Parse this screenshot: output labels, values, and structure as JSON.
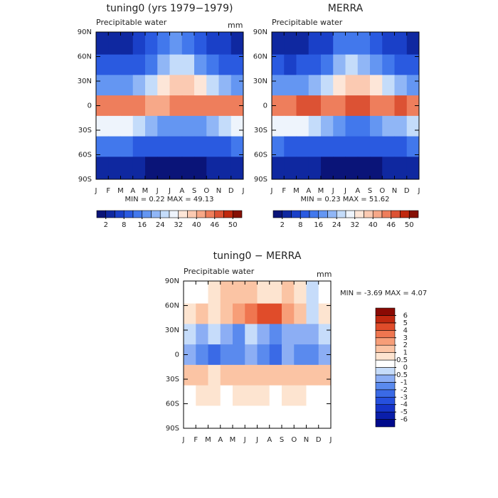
{
  "chart_data": [
    {
      "type": "heatmap",
      "title": "tuning0 (yrs 1979−1979)",
      "subtitle": "Precipitable water",
      "units": "mm",
      "xticklabels": [
        "J",
        "F",
        "M",
        "A",
        "M",
        "J",
        "J",
        "A",
        "S",
        "O",
        "N",
        "D",
        "J"
      ],
      "rows": [
        75,
        50,
        25,
        0,
        -25,
        -50,
        -75
      ],
      "ylim": [
        -90,
        90
      ],
      "yticks": [
        {
          "value": 90,
          "label": "90N"
        },
        {
          "value": 60,
          "label": "60N"
        },
        {
          "value": 30,
          "label": "30N"
        },
        0,
        {
          "value": -30,
          "label": "30S"
        },
        {
          "value": -60,
          "label": "60S"
        },
        {
          "value": -90,
          "label": "90S"
        }
      ],
      "values": [
        [
          4,
          4,
          4,
          5,
          8,
          13,
          16,
          14,
          10,
          7,
          5,
          4
        ],
        [
          8,
          8,
          9,
          11,
          15,
          22,
          26,
          25,
          19,
          14,
          10,
          9
        ],
        [
          18,
          17,
          17,
          20,
          25,
          32,
          38,
          38,
          33,
          26,
          21,
          19
        ],
        [
          43,
          43,
          44,
          43,
          42,
          41,
          43,
          44,
          43,
          44,
          45,
          44
        ],
        [
          30,
          31,
          30,
          27,
          22,
          18,
          16,
          16,
          18,
          21,
          24,
          28
        ],
        [
          12,
          12,
          12,
          11,
          10,
          9,
          9,
          9,
          9,
          10,
          11,
          12
        ],
        [
          3,
          3,
          3,
          2,
          1,
          1,
          1,
          1,
          1,
          2,
          2,
          3
        ]
      ],
      "min_label": "MIN =",
      "min": 0.22,
      "max_label": "MAX =",
      "max": 49.13,
      "colorbar": {
        "orientation": "horizontal",
        "ticks": [
          2,
          8,
          16,
          24,
          32,
          40,
          46,
          50
        ],
        "colors": [
          "#0a1478",
          "#0f28a0",
          "#1a40c8",
          "#2a5ae0",
          "#4278ec",
          "#6496f2",
          "#90b6f6",
          "#c4dcfa",
          "#eef4fc",
          "#fde6d8",
          "#fbcab2",
          "#f7a888",
          "#ee7e5c",
          "#dc5234",
          "#c0280e",
          "#861004"
        ]
      }
    },
    {
      "type": "heatmap",
      "title": "MERRA",
      "subtitle": "Precipitable water",
      "xticklabels": [
        "J",
        "F",
        "M",
        "A",
        "M",
        "J",
        "J",
        "A",
        "S",
        "O",
        "N",
        "D",
        "J"
      ],
      "rows": [
        75,
        50,
        25,
        0,
        -25,
        -50,
        -75
      ],
      "ylim": [
        -90,
        90
      ],
      "yticks": [
        {
          "value": 90,
          "label": "90N"
        },
        {
          "value": 60,
          "label": "60N"
        },
        {
          "value": 30,
          "label": "30N"
        },
        0,
        {
          "value": -30,
          "label": "30S"
        },
        {
          "value": -60,
          "label": "60S"
        },
        {
          "value": -90,
          "label": "90S"
        }
      ],
      "values": [
        [
          4,
          4,
          4,
          5,
          7,
          12,
          15,
          14,
          9,
          6,
          5,
          4
        ],
        [
          8,
          7,
          8,
          10,
          14,
          20,
          24,
          23,
          18,
          13,
          10,
          8
        ],
        [
          18,
          17,
          17,
          21,
          26,
          33,
          39,
          39,
          34,
          27,
          22,
          19
        ],
        [
          44,
          45,
          47,
          46,
          44,
          43,
          46,
          47,
          45,
          45,
          46,
          45
        ],
        [
          29,
          30,
          29,
          26,
          21,
          17,
          15,
          15,
          17,
          20,
          23,
          27
        ],
        [
          12,
          11,
          11,
          11,
          9,
          8,
          8,
          9,
          9,
          9,
          11,
          12
        ],
        [
          3,
          3,
          3,
          2,
          1,
          1,
          1,
          1,
          1,
          2,
          2,
          3
        ]
      ],
      "min_label": "MIN =",
      "min": 0.23,
      "max_label": "MAX =",
      "max": 51.62,
      "colorbar": {
        "orientation": "horizontal",
        "ticks": [
          2,
          8,
          16,
          24,
          32,
          40,
          46,
          50
        ],
        "colors": [
          "#0a1478",
          "#0f28a0",
          "#1a40c8",
          "#2a5ae0",
          "#4278ec",
          "#6496f2",
          "#90b6f6",
          "#c4dcfa",
          "#eef4fc",
          "#fde6d8",
          "#fbcab2",
          "#f7a888",
          "#ee7e5c",
          "#dc5234",
          "#c0280e",
          "#861004"
        ]
      }
    },
    {
      "type": "heatmap",
      "title": "tuning0 − MERRA",
      "subtitle": "Precipitable water",
      "units": "mm",
      "xticklabels": [
        "J",
        "F",
        "M",
        "A",
        "M",
        "J",
        "J",
        "A",
        "S",
        "O",
        "N",
        "D",
        "J"
      ],
      "rows": [
        75,
        50,
        25,
        0,
        -25,
        -50,
        -75
      ],
      "ylim": [
        -90,
        90
      ],
      "yticks": [
        {
          "value": 90,
          "label": "90N"
        },
        {
          "value": 60,
          "label": "60N"
        },
        {
          "value": 30,
          "label": "30N"
        },
        0,
        {
          "value": -30,
          "label": "30S"
        },
        {
          "value": -60,
          "label": "60S"
        },
        {
          "value": -90,
          "label": "90S"
        }
      ],
      "values": [
        [
          0.3,
          0.2,
          0.5,
          1,
          1.2,
          1,
          0.5,
          0.8,
          1,
          0.5,
          -0.3,
          0.2
        ],
        [
          0.5,
          1,
          0.5,
          1.5,
          2,
          3,
          4,
          4,
          2,
          1,
          -0.5,
          0.5
        ],
        [
          -0.5,
          -1,
          -0.3,
          -1,
          -1.5,
          -0.5,
          -1,
          -1.5,
          -1,
          -0.8,
          -1,
          -0.5
        ],
        [
          -1,
          -2,
          -3,
          -2,
          -1.5,
          -1,
          -2,
          -3,
          -1,
          -2,
          -2,
          -1
        ],
        [
          1,
          1.5,
          0.5,
          1,
          1,
          1.2,
          1,
          1.5,
          1.5,
          1,
          1.2,
          1
        ],
        [
          0.3,
          0.5,
          0.5,
          0.3,
          0.5,
          0.6,
          0.5,
          0.3,
          0.5,
          0.5,
          0.3,
          0.3
        ],
        [
          0.2,
          0.1,
          0.1,
          0.2,
          0.2,
          0.1,
          0.1,
          0.2,
          0.1,
          0.1,
          0.1,
          0.2
        ]
      ],
      "min_label": "MIN =",
      "min": -3.69,
      "max_label": "MAX =",
      "max": 4.07,
      "colorbar": {
        "orientation": "vertical",
        "ticks": [
          -6,
          -5,
          -4,
          -3,
          -2,
          -1,
          -0.5,
          0,
          0.5,
          1,
          2,
          3,
          4,
          5,
          6
        ],
        "colors": [
          "#000a8c",
          "#0a1eaa",
          "#1634c8",
          "#2650de",
          "#3a6ae6",
          "#5a8aee",
          "#8caef4",
          "#c6dcfa",
          "#ffffff",
          "#fde4d0",
          "#fbc4a4",
          "#f79e78",
          "#ef7650",
          "#e04c2a",
          "#c02810",
          "#8a0a04"
        ]
      }
    }
  ]
}
